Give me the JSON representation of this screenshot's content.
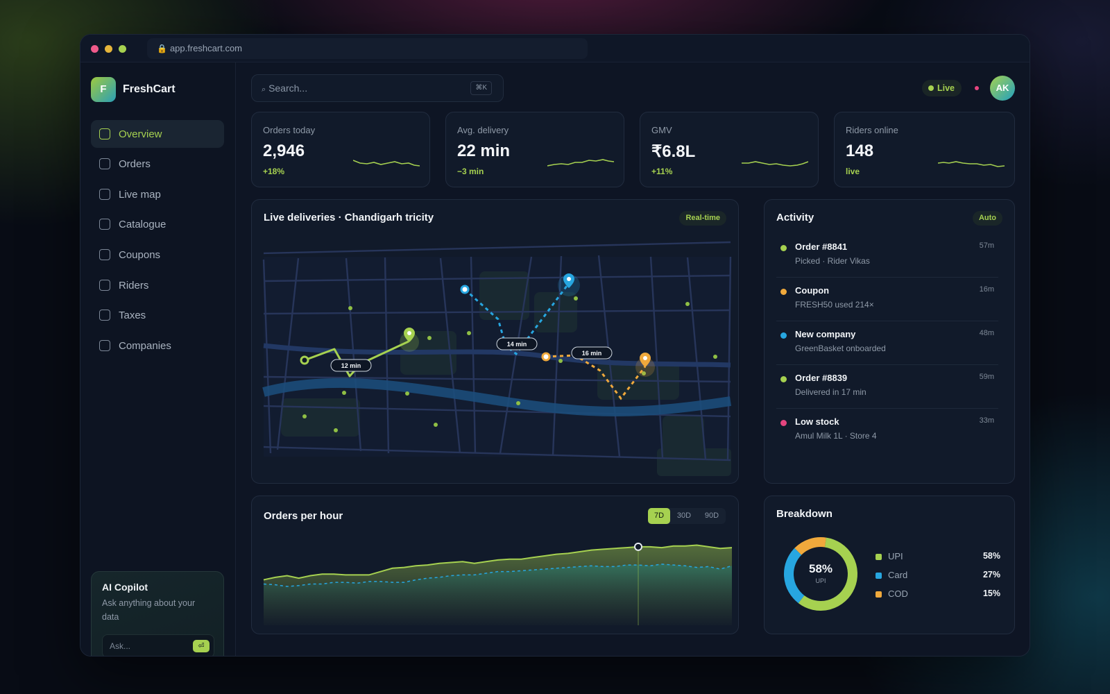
{
  "browser": {
    "url": "app.freshcart.com"
  },
  "brand": {
    "logo_letter": "F",
    "name": "FreshCart"
  },
  "nav": {
    "items": [
      {
        "label": "Overview",
        "active": true
      },
      {
        "label": "Orders"
      },
      {
        "label": "Live map"
      },
      {
        "label": "Catalogue"
      },
      {
        "label": "Coupons"
      },
      {
        "label": "Riders"
      },
      {
        "label": "Taxes"
      },
      {
        "label": "Companies"
      }
    ]
  },
  "copilot": {
    "title": "AI Copilot",
    "subtitle": "Ask anything about your data",
    "placeholder": "Ask...",
    "enter_icon": "⏎"
  },
  "header": {
    "search_placeholder": "Search...",
    "search_shortcut": "⌘K",
    "live_label": "Live",
    "avatar_initials": "AK"
  },
  "stats": [
    {
      "label": "Orders today",
      "value": "2,946",
      "delta": "+18%"
    },
    {
      "label": "Avg. delivery",
      "value": "22 min",
      "delta": "−3 min"
    },
    {
      "label": "GMV",
      "value": "₹6.8L",
      "delta": "+11%"
    },
    {
      "label": "Riders online",
      "value": "148",
      "delta": "live"
    }
  ],
  "map": {
    "title": "Live deliveries · Chandigarh tricity",
    "badge": "Real-time",
    "routes": [
      {
        "eta": "12 min",
        "color": "#a6d150"
      },
      {
        "eta": "14 min",
        "color": "#27a6e0"
      },
      {
        "eta": "16 min",
        "color": "#f0a93c"
      }
    ]
  },
  "activity": {
    "title": "Activity",
    "badge": "Auto",
    "items": [
      {
        "title": "Order #8841",
        "subtitle": "Picked · Rider Vikas",
        "time": "57m",
        "color": "#a6d150"
      },
      {
        "title": "Coupon",
        "subtitle": "FRESH50 used 214×",
        "time": "16m",
        "color": "#f0a93c"
      },
      {
        "title": "New company",
        "subtitle": "GreenBasket onboarded",
        "time": "48m",
        "color": "#27a6e0"
      },
      {
        "title": "Order #8839",
        "subtitle": "Delivered in 17 min",
        "time": "59m",
        "color": "#a6d150"
      },
      {
        "title": "Low stock",
        "subtitle": "Amul Milk 1L · Store 4",
        "time": "33m",
        "color": "#e5457f"
      }
    ]
  },
  "orders_chart": {
    "title": "Orders per hour",
    "ranges": [
      "7D",
      "30D",
      "90D"
    ],
    "active_range": "7D"
  },
  "breakdown": {
    "title": "Breakdown",
    "center_value": "58%",
    "center_label": "UPI",
    "segments": [
      {
        "label": "UPI",
        "value": "58%",
        "color": "#a6d150"
      },
      {
        "label": "Card",
        "value": "27%",
        "color": "#27a6e0"
      },
      {
        "label": "COD",
        "value": "15%",
        "color": "#f0a93c"
      }
    ]
  },
  "chart_data": [
    {
      "type": "area",
      "title": "Orders per hour",
      "x": [
        0,
        1,
        2,
        3,
        4,
        5,
        6,
        7,
        8,
        9,
        10,
        11,
        12,
        13,
        14,
        15,
        16,
        17,
        18,
        19,
        20,
        21,
        22,
        23,
        24,
        25,
        26,
        27,
        28,
        29,
        30,
        31,
        32,
        33,
        34,
        35,
        36,
        37,
        38,
        39,
        40
      ],
      "series": [
        {
          "values": [
            55,
            58,
            60,
            57,
            60,
            62,
            62,
            61,
            61,
            61,
            65,
            69,
            70,
            72,
            73,
            75,
            76,
            77,
            75,
            77,
            79,
            80,
            80,
            82,
            84,
            86,
            87,
            89,
            91,
            92,
            93,
            94,
            95,
            95,
            94,
            96,
            96,
            97,
            95,
            93,
            94
          ],
          "color": "#a6d150"
        },
        {
          "values": [
            50,
            49,
            47,
            48,
            50,
            50,
            52,
            52,
            51,
            53,
            53,
            52,
            52,
            55,
            57,
            58,
            60,
            61,
            61,
            63,
            65,
            65,
            66,
            67,
            68,
            69,
            70,
            71,
            72,
            71,
            71,
            73,
            73,
            72,
            74,
            73,
            72,
            70,
            71,
            68,
            72
          ],
          "color": "#27a6e0"
        }
      ],
      "ylim": [
        0,
        110
      ]
    },
    {
      "type": "pie",
      "categories": [
        "UPI",
        "Card",
        "COD"
      ],
      "values": [
        58,
        27,
        15
      ]
    }
  ]
}
